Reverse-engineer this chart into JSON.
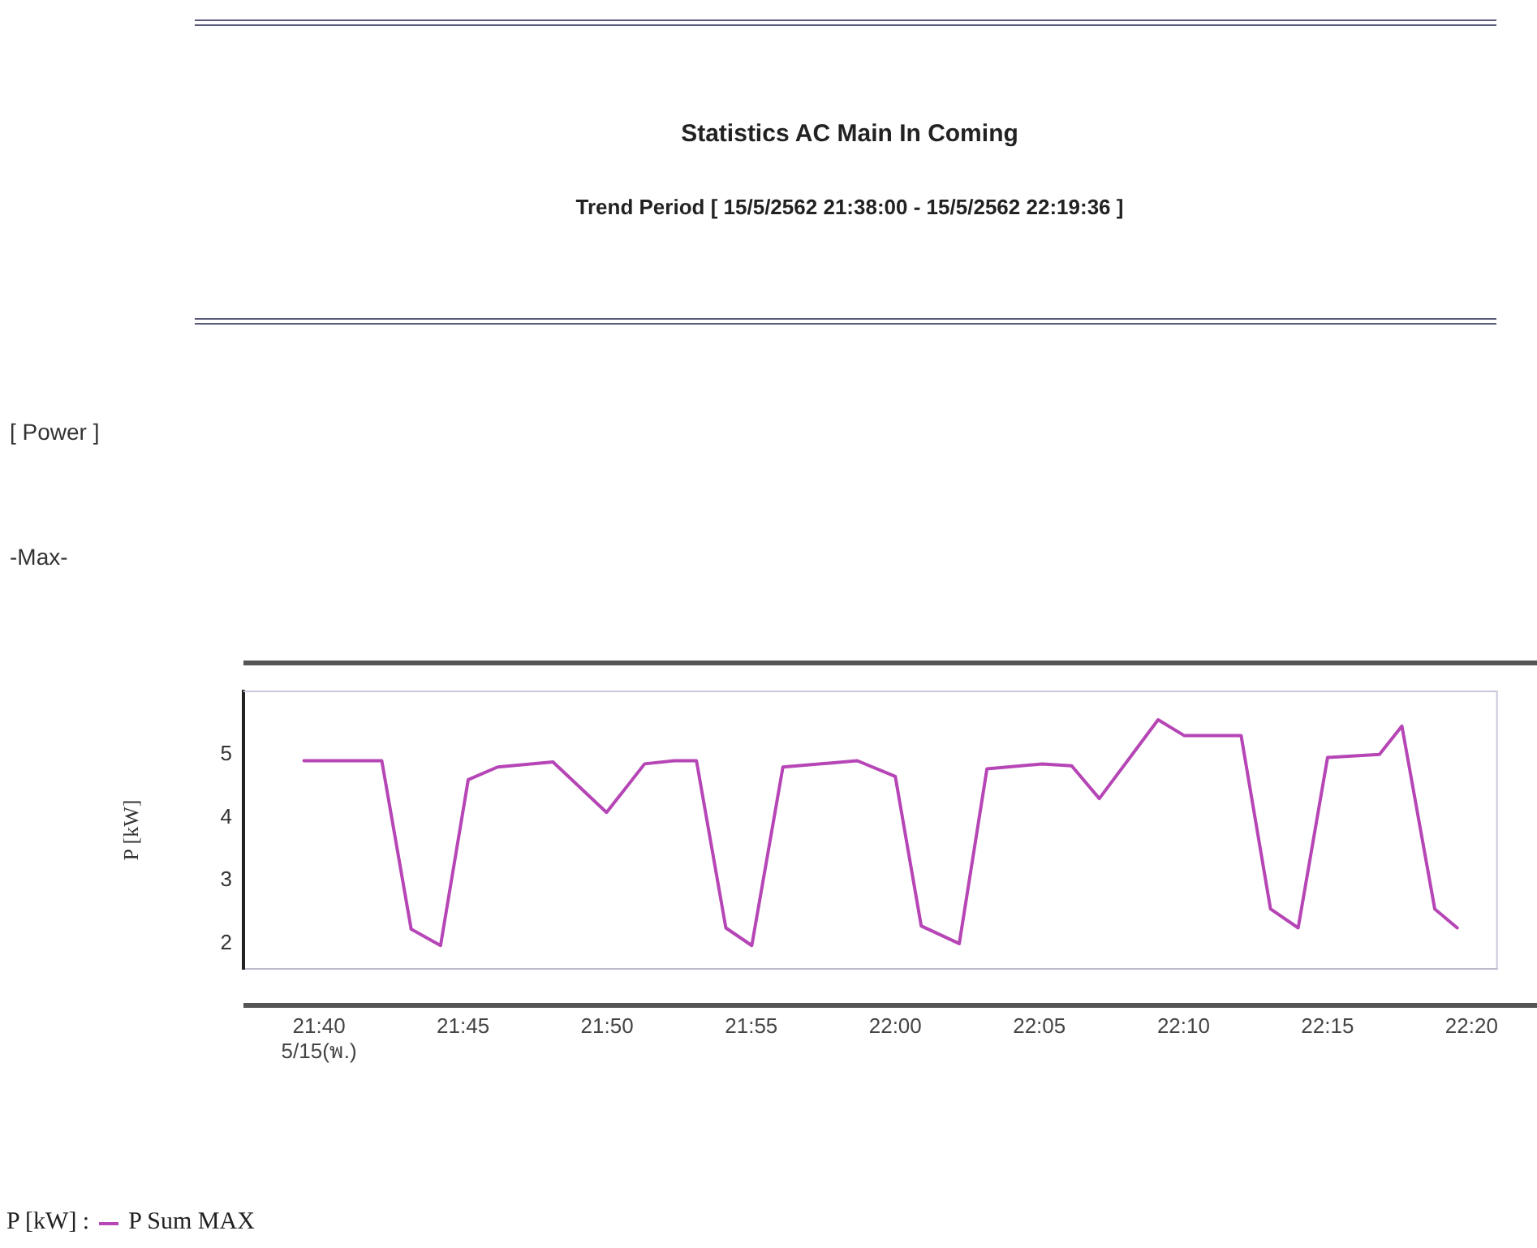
{
  "chart_data": {
    "type": "line",
    "title": "Statistics AC Main In Coming",
    "subtitle": "Trend Period [ 15/5/2562 21:38:00 - 15/5/2562 22:19:36 ]",
    "annotations": [
      "[ Power ]",
      "-Max-"
    ],
    "ylabel": "P [kW]",
    "legend_title": "P [kW] :",
    "legend": "bottom left",
    "grid": false,
    "x": [
      21.658,
      21.678,
      21.703,
      21.72,
      21.737,
      21.753,
      21.77,
      21.802,
      21.833,
      21.855,
      21.872,
      21.885,
      21.902,
      21.917,
      21.935,
      21.978,
      22.0,
      22.015,
      22.037,
      22.053,
      22.085,
      22.102,
      22.118,
      22.152,
      22.167,
      22.2,
      22.217,
      22.233,
      22.25,
      22.28,
      22.293,
      22.312,
      22.325
    ],
    "series": [
      {
        "name": "P Sum MAX",
        "color": "#b645b6",
        "values": [
          4.9,
          4.9,
          4.9,
          2.23,
          1.97,
          4.6,
          4.8,
          4.88,
          4.08,
          4.85,
          4.9,
          4.9,
          2.25,
          1.97,
          4.8,
          4.9,
          4.65,
          2.28,
          2.0,
          4.77,
          4.85,
          4.82,
          4.3,
          5.55,
          5.3,
          5.3,
          2.55,
          2.25,
          4.95,
          5.0,
          5.45,
          2.55,
          2.25
        ]
      }
    ],
    "xlim": [
      21.623,
      22.348
    ],
    "xticks": [
      {
        "value": 21.6667,
        "label": "21:40\n5/15(พ.)"
      },
      {
        "value": 21.75,
        "label": "21:45"
      },
      {
        "value": 21.8333,
        "label": "21:50"
      },
      {
        "value": 21.9167,
        "label": "21:55"
      },
      {
        "value": 22.0,
        "label": "22:00"
      },
      {
        "value": 22.0833,
        "label": "22:05"
      },
      {
        "value": 22.1667,
        "label": "22:10"
      },
      {
        "value": 22.25,
        "label": "22:15"
      },
      {
        "value": 22.3333,
        "label": "22:20"
      }
    ],
    "ylim": [
      1.6,
      6
    ],
    "yticks": [
      2,
      3,
      4,
      5
    ]
  }
}
